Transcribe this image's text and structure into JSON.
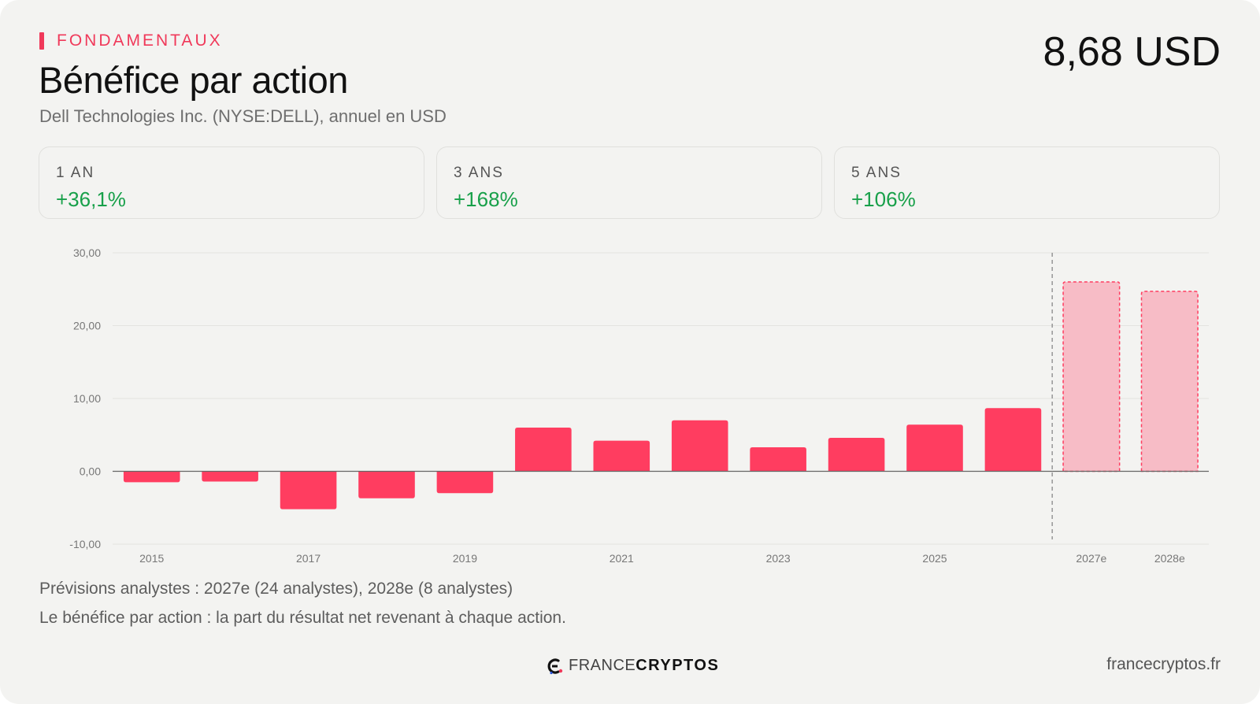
{
  "header": {
    "kicker": "FONDAMENTAUX",
    "title": "Bénéfice par action",
    "subtitle": "Dell Technologies Inc. (NYSE:DELL), annuel en USD",
    "current_value": "8,68 USD"
  },
  "stats": [
    {
      "label": "1 AN",
      "value": "+36,1%"
    },
    {
      "label": "3 ANS",
      "value": "+168%"
    },
    {
      "label": "5 ANS",
      "value": "+106%"
    }
  ],
  "chart_data": {
    "type": "bar",
    "categories": [
      "2015",
      "2016",
      "2017",
      "2018",
      "2019",
      "2020",
      "2021",
      "2022",
      "2023",
      "2024",
      "2025",
      "2026",
      "2027e",
      "2028e"
    ],
    "values": [
      -1.5,
      -1.4,
      -5.2,
      -3.7,
      -3.0,
      6.0,
      4.2,
      7.0,
      3.3,
      4.6,
      6.4,
      8.68,
      26.0,
      24.7
    ],
    "estimate": [
      false,
      false,
      false,
      false,
      false,
      false,
      false,
      false,
      false,
      false,
      false,
      false,
      true,
      true
    ],
    "x_tick_labels": [
      "2015",
      "",
      "2017",
      "",
      "2019",
      "",
      "2021",
      "",
      "2023",
      "",
      "2025",
      "",
      "2027e",
      "2028e"
    ],
    "y_ticks": [
      "30,00",
      "20,00",
      "10,00",
      "0,00",
      "-10,00"
    ],
    "ylim": [
      -10,
      30
    ],
    "grid": true,
    "colors": {
      "actual": "#ff3d60",
      "estimate_fill": "#f7bcc6",
      "estimate_stroke": "#ff3d60"
    }
  },
  "notes": {
    "forecast": "Prévisions analystes : 2027e (24 analystes), 2028e (8 analystes)",
    "definition": "Le bénéfice par action : la part du résultat net revenant à chaque action."
  },
  "footer": {
    "brand_light": "FRANCE",
    "brand_bold": "CRYPTOS",
    "site": "francecryptos.fr",
    "logo_icon": "francecryptos-logo-icon"
  }
}
